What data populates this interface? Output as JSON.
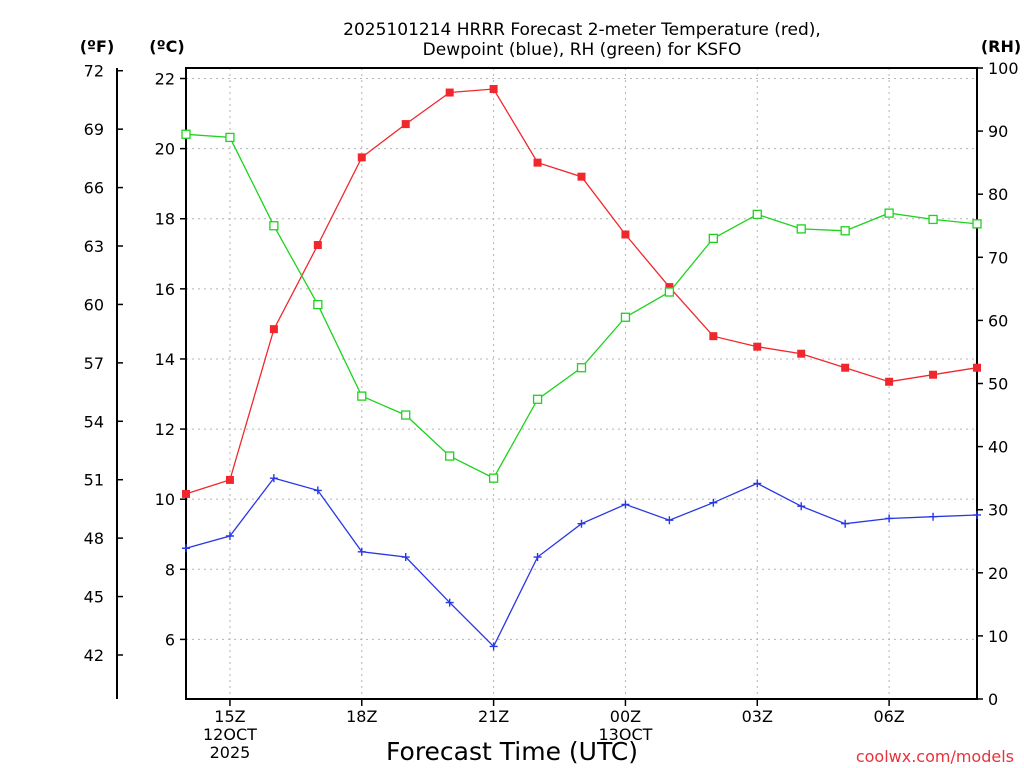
{
  "chart_data": {
    "type": "line",
    "title_line1": "2025101214 HRRR Forecast 2-meter Temperature (red),",
    "title_line2": "Dewpoint (blue), RH (green) for KSFO",
    "xlabel": "Forecast Time (UTC)",
    "credit": "coolwx.com/models",
    "units": {
      "fahrenheit": "(ºF)",
      "celsius": "(ºC)",
      "rh": "(RH)"
    },
    "x_hours": [
      14,
      15,
      16,
      17,
      18,
      19,
      20,
      21,
      22,
      23,
      24,
      25,
      26,
      27,
      28,
      29,
      30,
      31,
      32
    ],
    "xlim": [
      14,
      32
    ],
    "x_ticks": [
      {
        "hour": 15,
        "label": "15Z",
        "sub1": "12OCT",
        "sub2": "2025"
      },
      {
        "hour": 18,
        "label": "18Z",
        "sub1": "",
        "sub2": ""
      },
      {
        "hour": 21,
        "label": "21Z",
        "sub1": "",
        "sub2": ""
      },
      {
        "hour": 24,
        "label": "00Z",
        "sub1": "13OCT",
        "sub2": ""
      },
      {
        "hour": 27,
        "label": "03Z",
        "sub1": "",
        "sub2": ""
      },
      {
        "hour": 30,
        "label": "06Z",
        "sub1": "",
        "sub2": ""
      }
    ],
    "celsius_axis": {
      "ylim": [
        4.3,
        22.3
      ],
      "ticks": [
        6,
        8,
        10,
        12,
        14,
        16,
        18,
        20,
        22
      ]
    },
    "fahrenheit_axis": {
      "ticks": [
        42,
        45,
        48,
        51,
        54,
        57,
        60,
        63,
        66,
        69,
        72
      ]
    },
    "rh_axis": {
      "ylim": [
        0,
        100
      ],
      "ticks": [
        0,
        10,
        20,
        30,
        40,
        50,
        60,
        70,
        80,
        90,
        100
      ]
    },
    "series": [
      {
        "name": "Temperature",
        "axis": "celsius",
        "color": "#f0282d",
        "marker": "filled-square",
        "values": [
          10.15,
          10.55,
          14.85,
          17.25,
          19.75,
          20.7,
          21.6,
          21.7,
          19.6,
          19.2,
          17.55,
          16.05,
          14.65,
          14.35,
          14.15,
          13.75,
          13.35,
          13.55,
          13.75
        ]
      },
      {
        "name": "Dewpoint",
        "axis": "celsius",
        "color": "#2837e6",
        "marker": "plus",
        "values": [
          8.6,
          8.95,
          10.6,
          10.25,
          8.5,
          8.35,
          7.05,
          5.8,
          8.35,
          9.3,
          9.85,
          9.4,
          9.9,
          10.45,
          9.8,
          9.3,
          9.45,
          9.5,
          9.55
        ]
      },
      {
        "name": "RH",
        "axis": "rh",
        "color": "#1ed21e",
        "marker": "open-square",
        "values": [
          89.5,
          89.0,
          75.0,
          62.5,
          48.0,
          45.0,
          38.5,
          35.0,
          47.5,
          52.5,
          60.5,
          64.5,
          73.0,
          76.8,
          74.5,
          74.2,
          77.0,
          76.0,
          75.3
        ]
      }
    ]
  }
}
